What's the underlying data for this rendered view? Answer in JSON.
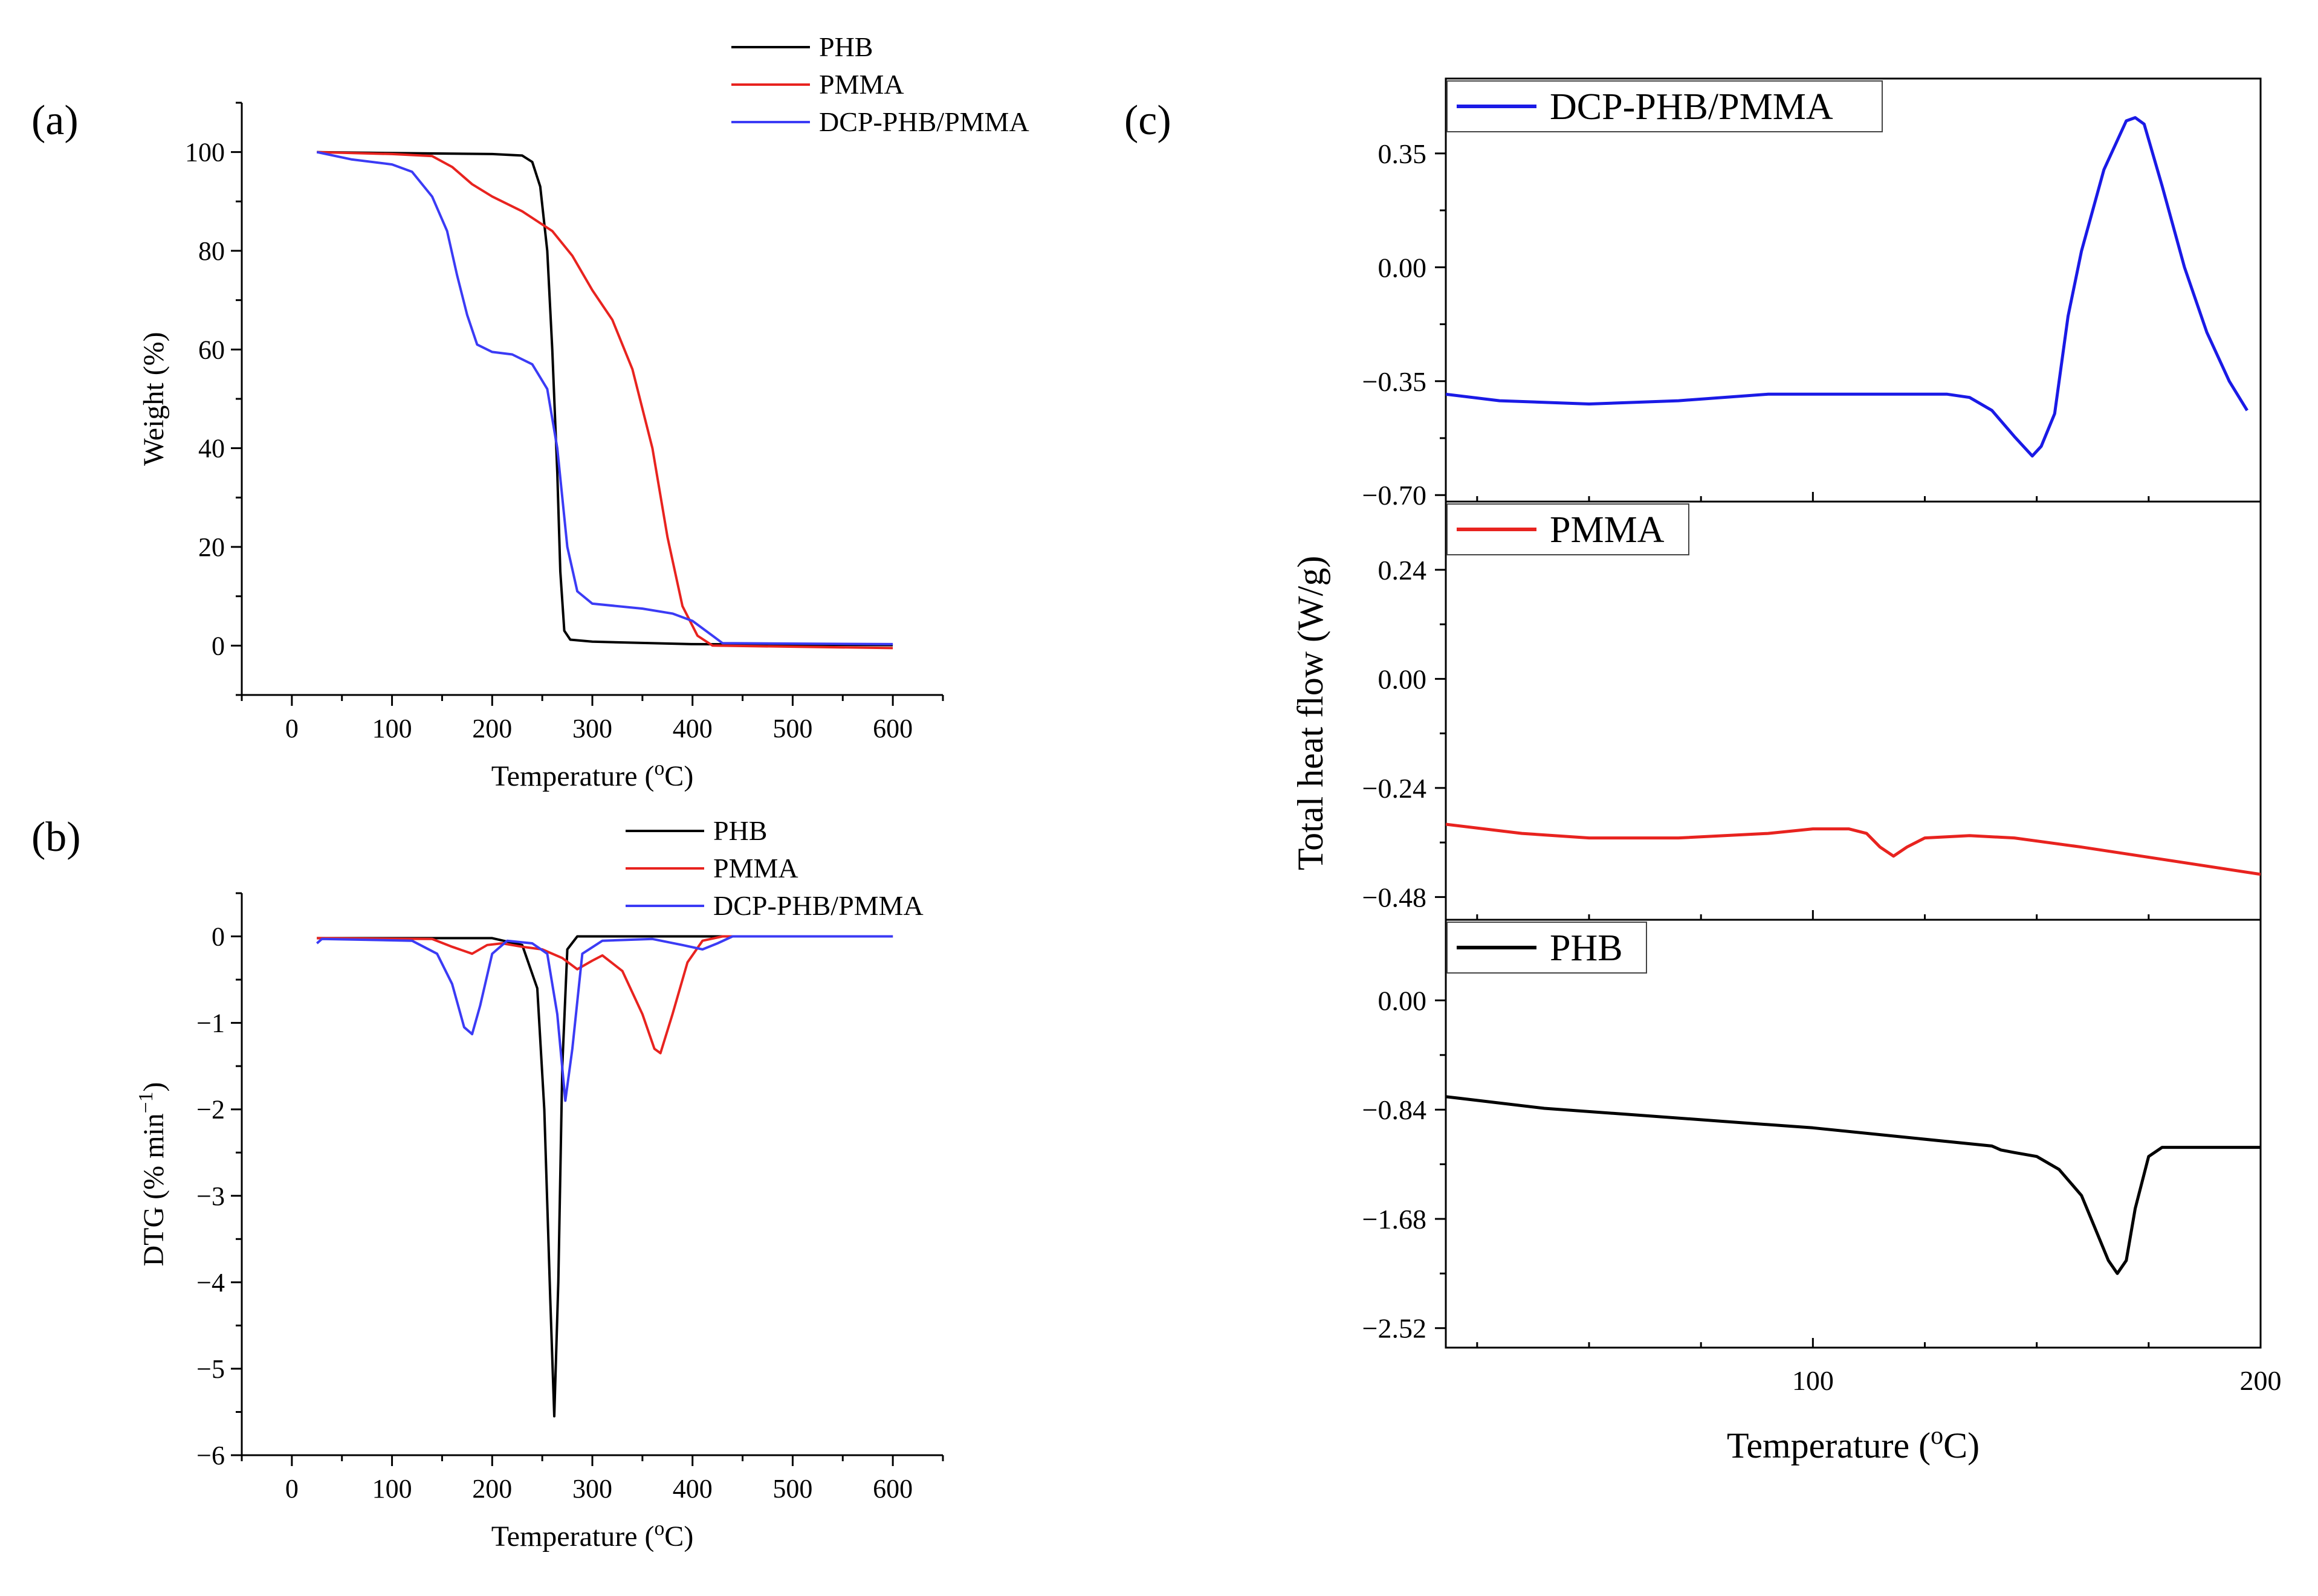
{
  "chart_data": [
    {
      "panel": "(a)",
      "type": "line",
      "xlabel": "Temperature (oC)",
      "ylabel": "Weight (%)",
      "xlim": [
        -50,
        650
      ],
      "ylim": [
        -10,
        110
      ],
      "xticks": [
        0,
        100,
        200,
        300,
        400,
        500,
        600
      ],
      "yticks": [
        0,
        20,
        40,
        60,
        80,
        100
      ],
      "legend": "top-right",
      "series": [
        {
          "name": "PHB",
          "color": "#000000",
          "points": [
            [
              25,
              100
            ],
            [
              100,
              99.8
            ],
            [
              200,
              99.6
            ],
            [
              230,
              99.3
            ],
            [
              240,
              98
            ],
            [
              248,
              93
            ],
            [
              255,
              80
            ],
            [
              260,
              60
            ],
            [
              265,
              35
            ],
            [
              268,
              15
            ],
            [
              272,
              3
            ],
            [
              278,
              1.2
            ],
            [
              300,
              0.8
            ],
            [
              400,
              0.3
            ],
            [
              600,
              0.1
            ]
          ]
        },
        {
          "name": "PMMA",
          "color": "#e8231f",
          "points": [
            [
              25,
              100
            ],
            [
              100,
              99.6
            ],
            [
              140,
              99.2
            ],
            [
              160,
              97
            ],
            [
              180,
              93.5
            ],
            [
              200,
              91
            ],
            [
              230,
              88
            ],
            [
              260,
              84
            ],
            [
              280,
              79
            ],
            [
              300,
              72
            ],
            [
              320,
              66
            ],
            [
              340,
              56
            ],
            [
              360,
              40
            ],
            [
              375,
              22
            ],
            [
              390,
              8
            ],
            [
              405,
              2
            ],
            [
              420,
              0
            ],
            [
              600,
              -0.5
            ]
          ]
        },
        {
          "name": "DCP-PHB/PMMA",
          "color": "#3b3bf5",
          "points": [
            [
              25,
              100
            ],
            [
              60,
              98.5
            ],
            [
              100,
              97.5
            ],
            [
              120,
              96
            ],
            [
              140,
              91
            ],
            [
              155,
              84
            ],
            [
              165,
              75
            ],
            [
              175,
              67
            ],
            [
              185,
              61
            ],
            [
              200,
              59.5
            ],
            [
              220,
              59
            ],
            [
              240,
              57
            ],
            [
              255,
              52
            ],
            [
              265,
              40
            ],
            [
              275,
              20
            ],
            [
              285,
              11
            ],
            [
              300,
              8.5
            ],
            [
              350,
              7.5
            ],
            [
              380,
              6.5
            ],
            [
              400,
              5
            ],
            [
              420,
              2
            ],
            [
              430,
              0.5
            ],
            [
              600,
              0.3
            ]
          ]
        }
      ]
    },
    {
      "panel": "(b)",
      "type": "line",
      "xlabel": "Temperature (oC)",
      "ylabel": "DTG (% min-1)",
      "xlim": [
        -50,
        650
      ],
      "ylim": [
        -6,
        0.5
      ],
      "xticks": [
        0,
        100,
        200,
        300,
        400,
        500,
        600
      ],
      "yticks": [
        0,
        -1,
        -2,
        -3,
        -4,
        -5,
        -6
      ],
      "legend": "top-right",
      "series": [
        {
          "name": "PHB",
          "color": "#000000",
          "points": [
            [
              25,
              -0.02
            ],
            [
              200,
              -0.02
            ],
            [
              230,
              -0.1
            ],
            [
              245,
              -0.6
            ],
            [
              252,
              -2
            ],
            [
              258,
              -4.2
            ],
            [
              262,
              -5.55
            ],
            [
              266,
              -4
            ],
            [
              270,
              -1.5
            ],
            [
              275,
              -0.15
            ],
            [
              285,
              0
            ],
            [
              600,
              0
            ]
          ]
        },
        {
          "name": "PMMA",
          "color": "#e8231f",
          "points": [
            [
              25,
              -0.02
            ],
            [
              140,
              -0.03
            ],
            [
              160,
              -0.12
            ],
            [
              180,
              -0.2
            ],
            [
              195,
              -0.1
            ],
            [
              210,
              -0.08
            ],
            [
              230,
              -0.12
            ],
            [
              250,
              -0.15
            ],
            [
              270,
              -0.25
            ],
            [
              285,
              -0.38
            ],
            [
              300,
              -0.28
            ],
            [
              310,
              -0.22
            ],
            [
              330,
              -0.4
            ],
            [
              350,
              -0.9
            ],
            [
              362,
              -1.3
            ],
            [
              368,
              -1.35
            ],
            [
              380,
              -0.9
            ],
            [
              395,
              -0.3
            ],
            [
              410,
              -0.05
            ],
            [
              430,
              0
            ],
            [
              600,
              0
            ]
          ]
        },
        {
          "name": "DCP-PHB/PMMA",
          "color": "#3b3bf5",
          "points": [
            [
              25,
              -0.08
            ],
            [
              30,
              -0.03
            ],
            [
              120,
              -0.05
            ],
            [
              145,
              -0.2
            ],
            [
              160,
              -0.55
            ],
            [
              172,
              -1.05
            ],
            [
              180,
              -1.13
            ],
            [
              188,
              -0.8
            ],
            [
              200,
              -0.2
            ],
            [
              215,
              -0.05
            ],
            [
              240,
              -0.08
            ],
            [
              255,
              -0.2
            ],
            [
              265,
              -0.9
            ],
            [
              273,
              -1.9
            ],
            [
              280,
              -1.3
            ],
            [
              290,
              -0.2
            ],
            [
              310,
              -0.05
            ],
            [
              360,
              -0.03
            ],
            [
              390,
              -0.1
            ],
            [
              410,
              -0.15
            ],
            [
              425,
              -0.08
            ],
            [
              440,
              0
            ],
            [
              600,
              0
            ]
          ]
        }
      ]
    },
    {
      "panel": "(c)",
      "type": "line",
      "xlabel": "Temperature (oC)",
      "ylabel": "Total heat flow (W/g)",
      "xlim": [
        18,
        200
      ],
      "xticks": [
        100,
        200
      ],
      "legend": "top-left",
      "subplots": [
        {
          "name": "DCP-PHB/PMMA",
          "color": "#1a1ae6",
          "ylim": [
            -0.72,
            0.58
          ],
          "yticks": [
            0.35,
            0.0,
            -0.35,
            -0.7
          ],
          "ytick_labels": [
            "0.35",
            "0.00",
            "-0.35",
            "-0.70"
          ],
          "points": [
            [
              18,
              -0.39
            ],
            [
              30,
              -0.41
            ],
            [
              50,
              -0.42
            ],
            [
              70,
              -0.41
            ],
            [
              90,
              -0.39
            ],
            [
              110,
              -0.39
            ],
            [
              130,
              -0.39
            ],
            [
              135,
              -0.4
            ],
            [
              140,
              -0.44
            ],
            [
              145,
              -0.52
            ],
            [
              149,
              -0.58
            ],
            [
              151,
              -0.55
            ],
            [
              154,
              -0.45
            ],
            [
              157,
              -0.15
            ],
            [
              160,
              0.05
            ],
            [
              165,
              0.3
            ],
            [
              170,
              0.45
            ],
            [
              172,
              0.46
            ],
            [
              174,
              0.44
            ],
            [
              178,
              0.25
            ],
            [
              183,
              0.0
            ],
            [
              188,
              -0.2
            ],
            [
              193,
              -0.35
            ],
            [
              197,
              -0.44
            ]
          ]
        },
        {
          "name": "PMMA",
          "color": "#e8231f",
          "ylim": [
            -0.53,
            0.39
          ],
          "yticks": [
            0.24,
            0.0,
            -0.24,
            -0.48
          ],
          "ytick_labels": [
            "0.24",
            "0.00",
            "-0.24",
            "-0.48"
          ],
          "points": [
            [
              18,
              -0.32
            ],
            [
              35,
              -0.34
            ],
            [
              50,
              -0.35
            ],
            [
              70,
              -0.35
            ],
            [
              90,
              -0.34
            ],
            [
              100,
              -0.33
            ],
            [
              108,
              -0.33
            ],
            [
              112,
              -0.34
            ],
            [
              115,
              -0.37
            ],
            [
              118,
              -0.39
            ],
            [
              121,
              -0.37
            ],
            [
              125,
              -0.35
            ],
            [
              135,
              -0.345
            ],
            [
              145,
              -0.35
            ],
            [
              160,
              -0.37
            ],
            [
              180,
              -0.4
            ],
            [
              200,
              -0.43
            ]
          ]
        },
        {
          "name": "PHB",
          "color": "#000000",
          "ylim": [
            -2.67,
            0.62
          ],
          "yticks": [
            0.0,
            -0.84,
            -1.68,
            -2.52
          ],
          "ytick_labels": [
            "0.00",
            "-0.84",
            "-1.68",
            "-2.52"
          ],
          "points": [
            [
              18,
              -0.74
            ],
            [
              40,
              -0.83
            ],
            [
              60,
              -0.88
            ],
            [
              80,
              -0.93
            ],
            [
              100,
              -0.98
            ],
            [
              120,
              -1.05
            ],
            [
              140,
              -1.12
            ],
            [
              142,
              -1.15
            ],
            [
              145,
              -1.17
            ],
            [
              150,
              -1.2
            ],
            [
              155,
              -1.3
            ],
            [
              160,
              -1.5
            ],
            [
              163,
              -1.75
            ],
            [
              166,
              -2.0
            ],
            [
              168,
              -2.1
            ],
            [
              170,
              -2.0
            ],
            [
              172,
              -1.6
            ],
            [
              175,
              -1.2
            ],
            [
              178,
              -1.13
            ],
            [
              200,
              -1.13
            ]
          ]
        }
      ]
    }
  ]
}
